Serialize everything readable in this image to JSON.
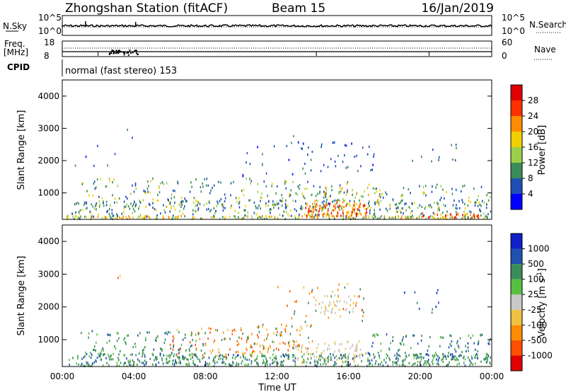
{
  "header": {
    "station": "Zhongshan Station (fitACF)",
    "beam": "Beam 15",
    "date": "16/Jan/2019"
  },
  "top_panels": {
    "nsky_label": "N.Sky",
    "nsky_ticks": [
      "10^5",
      "10^0"
    ],
    "nsearch_label": "N.Search",
    "nsearch_ticks": [
      "10^5",
      "10^0"
    ],
    "freq_label_1": "Freq.",
    "freq_label_2": "[MHz]",
    "freq_ticks": [
      "18",
      "8"
    ],
    "nave_label": "Nave",
    "nave_ticks": [
      "60",
      "0"
    ],
    "cpid_label": "CPID",
    "cpid_text": "normal (fast stereo) 153"
  },
  "chart_data": [
    {
      "type": "heatmap",
      "name": "power",
      "ylabel": "Slant Range [km]",
      "xlabel": "",
      "yticks": [
        "4000",
        "3000",
        "2000",
        "1000"
      ],
      "ylim": [
        180,
        4500
      ],
      "xlim_hours": [
        0,
        24
      ],
      "colorbar": {
        "label": "Power [dB]",
        "ticks": [
          "28",
          "24",
          "20",
          "16",
          "12",
          "8",
          "4"
        ],
        "colors": [
          "#0000ff",
          "#1f4fb4",
          "#3b8c5a",
          "#9bcf4a",
          "#f0d000",
          "#ff8c00",
          "#ff3000",
          "#e00000"
        ]
      }
    },
    {
      "type": "heatmap",
      "name": "velocity",
      "ylabel": "Slant Range [km]",
      "xlabel": "Time UT",
      "yticks": [
        "4000",
        "3000",
        "2000",
        "1000"
      ],
      "xticks": [
        "00:00",
        "04:00",
        "08:00",
        "12:00",
        "16:00",
        "20:00",
        "00:00"
      ],
      "ylim": [
        180,
        4500
      ],
      "xlim_hours": [
        0,
        24
      ],
      "colorbar": {
        "label": "Velocity [m s",
        "label_sup": "-1",
        "label_end": "]",
        "ticks": [
          "1000",
          "500",
          "100",
          "25",
          "-25",
          "-100",
          "-500",
          "-1000"
        ],
        "colors": [
          "#e00000",
          "#ff5000",
          "#ff8c00",
          "#f0c040",
          "#c8c8c8",
          "#58c040",
          "#3b8c5a",
          "#2050b0",
          "#1020c8"
        ]
      }
    }
  ]
}
